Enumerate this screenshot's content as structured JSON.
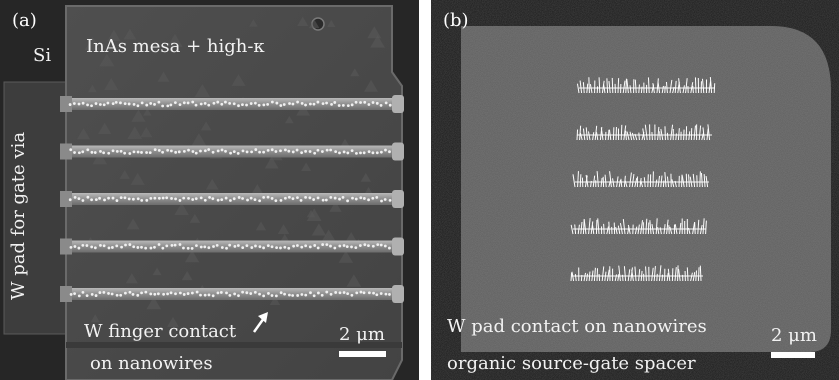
{
  "panel_a": {
    "tag": "(a)",
    "si_label": "Si",
    "mesa_label": "InAs mesa + high-κ",
    "gate_via_label": "W pad for gate via",
    "finger_label_line1": "W finger contact",
    "finger_label_line2": "on nanowires",
    "scale_label": "2 μm",
    "finger_count": 5
  },
  "panel_b": {
    "tag": "(b)",
    "pad_label": "W pad contact on nanowires",
    "spacer_label": "organic source-gate spacer",
    "scale_label": "2 μm",
    "nanowire_row_count": 5
  },
  "colors": {
    "mesa": "#4a4a4a",
    "metal": "#9a9a9a",
    "nanowire": "#ffffff",
    "pad_b": "#565656"
  },
  "icons": {
    "arrow": "arrow-up-right-icon"
  }
}
